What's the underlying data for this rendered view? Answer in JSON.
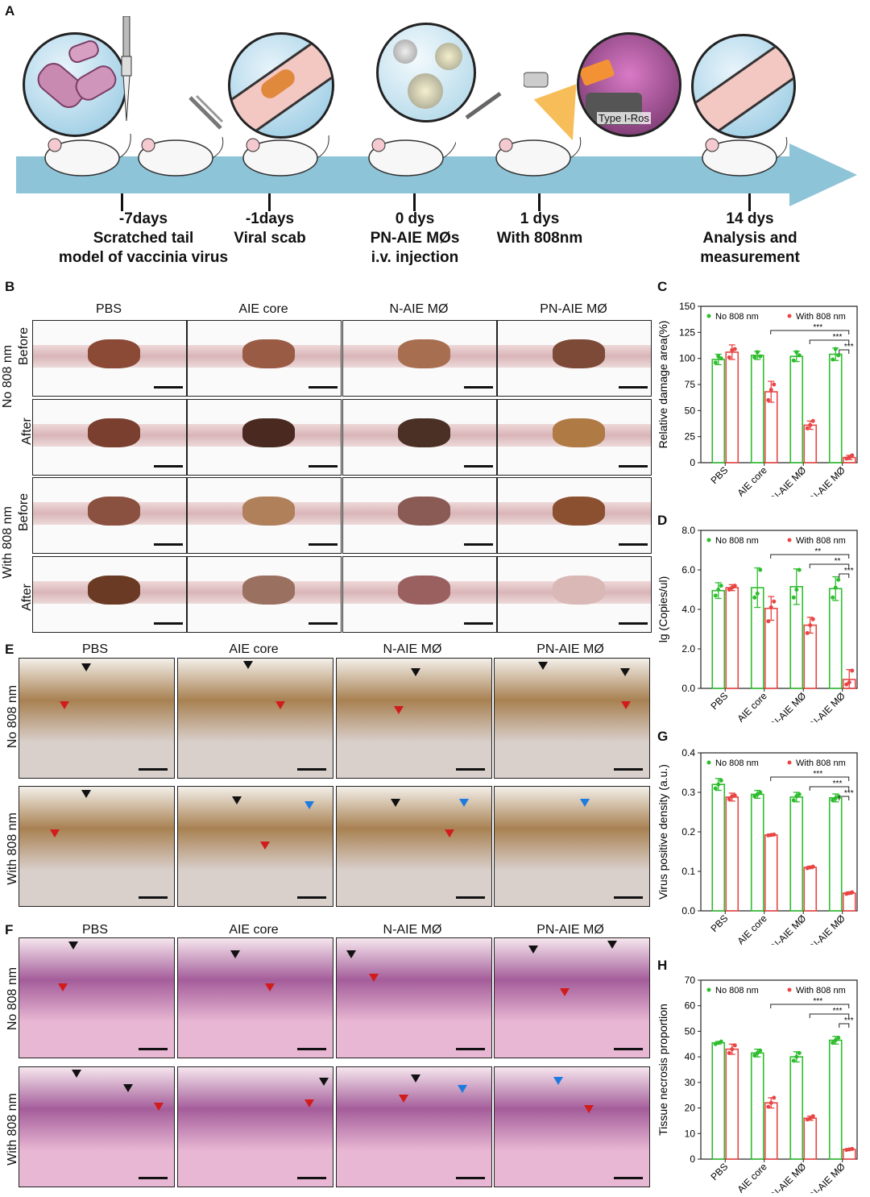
{
  "panel_labels": {
    "A": "A",
    "B": "B",
    "C": "C",
    "D": "D",
    "E": "E",
    "F": "F",
    "G": "G",
    "H": "H"
  },
  "timeline": [
    {
      "day": "-7days",
      "desc1": "Scratched tail",
      "desc2": "model of vaccinia virus"
    },
    {
      "day": "-1days",
      "desc1": "Viral scab",
      "desc2": ""
    },
    {
      "day": "0 dys",
      "desc1": "PN-AIE MØs",
      "desc2": "i.v. injection"
    },
    {
      "day": "1 dys",
      "desc1": "With 808nm",
      "desc2": ""
    },
    {
      "day": "14 dys",
      "desc1": "Analysis and",
      "desc2": "measurement"
    }
  ],
  "bubble_text": "Type I-Ros",
  "groups": [
    "PBS",
    "AIE core",
    "N-AIE MØ",
    "PN-AIE MØ"
  ],
  "conditions": {
    "no": "No 808 nm",
    "with": "With 808 nm"
  },
  "states": {
    "before": "Before",
    "after": "After"
  },
  "legend": {
    "no": "No 808 nm",
    "with": "With 808 nm"
  },
  "colors": {
    "green": "#2ebd2e",
    "red": "#e84545",
    "arrow": "#8ec4d8"
  },
  "chart_data": [
    {
      "panel": "C",
      "type": "bar",
      "ylabel": "Relative damage area(%)",
      "ylim": [
        0,
        150
      ],
      "yticks": [
        0,
        25,
        50,
        75,
        100,
        125,
        150
      ],
      "categories": [
        "PBS",
        "AIE core",
        "N-AIE MØ",
        "PN-AIE MØ"
      ],
      "series": [
        {
          "name": "No 808 nm",
          "values": [
            99,
            103,
            102,
            104
          ],
          "err": [
            5,
            4,
            5,
            6
          ],
          "points": [
            [
              96,
              102,
              100
            ],
            [
              101,
              106,
              102
            ],
            [
              98,
              106,
              103
            ],
            [
              99,
              109,
              103
            ]
          ]
        },
        {
          "name": "With 808 nm",
          "values": [
            106,
            68,
            36,
            5
          ],
          "err": [
            7,
            10,
            4,
            2
          ],
          "points": [
            [
              101,
              108,
              109
            ],
            [
              60,
              70,
              75
            ],
            [
              33,
              36,
              40
            ],
            [
              4,
              5,
              7
            ]
          ]
        }
      ],
      "significance": [
        {
          "from": "AIE core",
          "to": "PN-AIE MØ",
          "label": "***"
        },
        {
          "from": "N-AIE MØ",
          "to": "PN-AIE MØ",
          "label": "***"
        },
        {
          "from": "PN-AIE MØ",
          "to": "PN-AIE MØ",
          "label": "***"
        }
      ]
    },
    {
      "panel": "D",
      "type": "bar",
      "ylabel": "lg (Copies/ul)",
      "ylim": [
        0,
        8
      ],
      "yticks": [
        "0.0",
        "2.0",
        "4.0",
        "6.0",
        "8.0"
      ],
      "categories": [
        "PBS",
        "AIE core",
        "N-AIE MØ",
        "PN-AIE MØ"
      ],
      "series": [
        {
          "name": "No 808 nm",
          "values": [
            4.95,
            5.1,
            5.15,
            5.05
          ],
          "err": [
            0.4,
            1.0,
            0.9,
            0.6
          ],
          "points": [
            [
              4.7,
              5.0,
              5.2
            ],
            [
              4.6,
              4.8,
              6.0
            ],
            [
              4.6,
              5.0,
              6.0
            ],
            [
              4.6,
              5.1,
              5.5
            ]
          ]
        },
        {
          "name": "With 808 nm",
          "values": [
            5.1,
            4.05,
            3.2,
            0.45
          ],
          "err": [
            0.15,
            0.6,
            0.4,
            0.5
          ],
          "points": [
            [
              5.0,
              5.1,
              5.2
            ],
            [
              3.4,
              4.1,
              4.4
            ],
            [
              2.8,
              3.2,
              3.5
            ],
            [
              0.2,
              0.3,
              0.9
            ]
          ]
        }
      ],
      "significance": [
        {
          "from": "AIE core",
          "to": "PN-AIE MØ",
          "label": "**"
        },
        {
          "from": "N-AIE MØ",
          "to": "PN-AIE MØ",
          "label": "**"
        },
        {
          "from": "PN-AIE MØ",
          "to": "PN-AIE MØ",
          "label": "***"
        }
      ]
    },
    {
      "panel": "G",
      "type": "bar",
      "ylabel": "Virus positive density (a.u.)",
      "ylim": [
        0,
        0.4
      ],
      "yticks": [
        "0.0",
        "0.1",
        "0.2",
        "0.3",
        "0.4"
      ],
      "categories": [
        "PBS",
        "AIE core",
        "N-AIE MØ",
        "PN-AIE MØ"
      ],
      "series": [
        {
          "name": "No 808 nm",
          "values": [
            0.32,
            0.295,
            0.288,
            0.286
          ],
          "err": [
            0.015,
            0.01,
            0.012,
            0.01
          ],
          "points": [
            [
              0.31,
              0.32,
              0.33
            ],
            [
              0.29,
              0.295,
              0.3
            ],
            [
              0.28,
              0.29,
              0.295
            ],
            [
              0.28,
              0.285,
              0.29
            ]
          ]
        },
        {
          "name": "With 808 nm",
          "values": [
            0.288,
            0.192,
            0.11,
            0.045
          ],
          "err": [
            0.01,
            0.002,
            0.003,
            0.003
          ],
          "points": [
            [
              0.283,
              0.29,
              0.292
            ],
            [
              0.191,
              0.192,
              0.193
            ],
            [
              0.108,
              0.11,
              0.112
            ],
            [
              0.043,
              0.045,
              0.047
            ]
          ]
        }
      ],
      "significance": [
        {
          "from": "AIE core",
          "to": "PN-AIE MØ",
          "label": "***"
        },
        {
          "from": "N-AIE MØ",
          "to": "PN-AIE MØ",
          "label": "***"
        },
        {
          "from": "PN-AIE MØ",
          "to": "PN-AIE MØ",
          "label": "***"
        }
      ]
    },
    {
      "panel": "H",
      "type": "bar",
      "ylabel": "Tissue necrosis proportion",
      "ylim": [
        0,
        70
      ],
      "yticks": [
        0,
        10,
        20,
        30,
        40,
        50,
        60,
        70
      ],
      "categories": [
        "PBS",
        "AIE core",
        "N-AIE MØ",
        "PN-AIE MØ"
      ],
      "series": [
        {
          "name": "No 808 nm",
          "values": [
            45.5,
            41.5,
            40,
            46.5
          ],
          "err": [
            0.5,
            1.5,
            2,
            1.5
          ],
          "points": [
            [
              45,
              45.5,
              46
            ],
            [
              40.5,
              41.5,
              42.5
            ],
            [
              38.5,
              40,
              41.5
            ],
            [
              45.5,
              46.5,
              47.5
            ]
          ]
        },
        {
          "name": "With 808 nm",
          "values": [
            43,
            22,
            16,
            3.8
          ],
          "err": [
            2,
            2,
            0.8,
            0.3
          ],
          "points": [
            [
              41.5,
              43,
              44.5
            ],
            [
              20.5,
              22,
              24
            ],
            [
              15.5,
              16,
              16.8
            ],
            [
              3.6,
              3.8,
              4.0
            ]
          ]
        }
      ],
      "significance": [
        {
          "from": "AIE core",
          "to": "PN-AIE MØ",
          "label": "***"
        },
        {
          "from": "N-AIE MØ",
          "to": "PN-AIE MØ",
          "label": "***"
        },
        {
          "from": "PN-AIE MØ",
          "to": "PN-AIE MØ",
          "label": "***"
        }
      ]
    }
  ]
}
